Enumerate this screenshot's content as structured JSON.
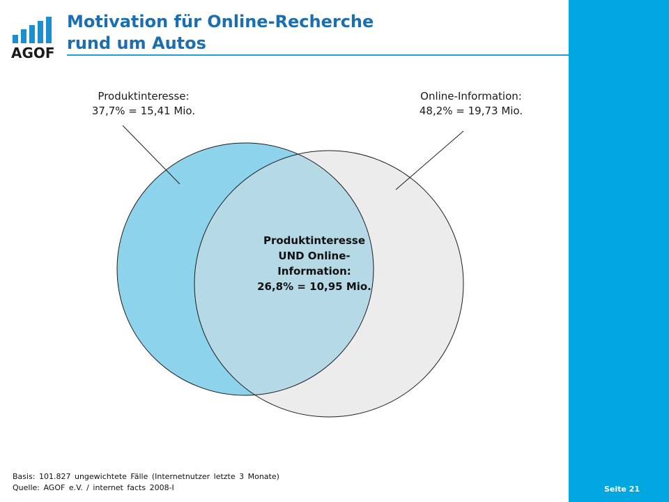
{
  "header": {
    "title_line1": "Motivation für Online-Recherche",
    "title_line2": "rund um Autos",
    "logo_text": "AGOF"
  },
  "venn": {
    "left_set": {
      "label_line1": "Produktinteresse:",
      "label_line2": "37,7% = 15,41 Mio.",
      "color": "#8dd3ec"
    },
    "right_set": {
      "label_line1": "Online-Information:",
      "label_line2": "48,2% = 19,73 Mio.",
      "color": "#ececec"
    },
    "overlap": {
      "label_line1": "Produktinteresse",
      "label_line2": "UND Online-",
      "label_line3": "Information:",
      "label_line4": "26,8% = 10,95 Mio.",
      "color": "#b6d9e6"
    }
  },
  "footer": {
    "basis": "Basis: 101.827 ungewichtete Fälle (Internetnutzer letzte 3 Monate)",
    "quelle": "Quelle: AGOF e.V. / internet facts 2008-I"
  },
  "sidebar": {
    "page_label": "Seite 21",
    "color": "#00a7e0"
  }
}
